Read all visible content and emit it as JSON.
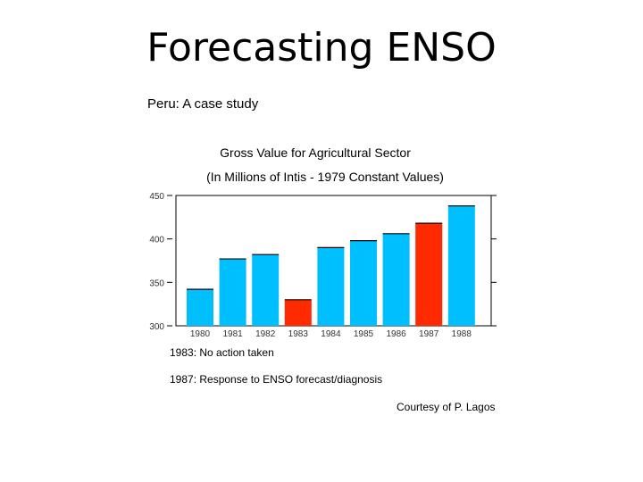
{
  "slide": {
    "title": "Forecasting ENSO",
    "subtitle": "Peru: A case study"
  },
  "colors": {
    "normal_bar": "#00bfff",
    "highlight_bar": "#ff2a00",
    "axis": "#000000"
  },
  "chart_data": {
    "type": "bar",
    "title": "Gross Value for Agricultural Sector",
    "subtitle": "(In Millions of Intis - 1979 Constant Values)",
    "categories": [
      "1980",
      "1981",
      "1982",
      "1983",
      "1984",
      "1985",
      "1986",
      "1987",
      "1988"
    ],
    "values": [
      342,
      377,
      382,
      330,
      390,
      398,
      406,
      418,
      438
    ],
    "highlighted": [
      "1983",
      "1987"
    ],
    "ylim": [
      300,
      450
    ],
    "yticks": [
      "300",
      "350",
      "400",
      "450"
    ],
    "xlabel": "",
    "ylabel": "",
    "grid": false,
    "legend": "none"
  },
  "annotations": {
    "note_1983": "1983: No action taken",
    "note_1987": "1987: Response to ENSO forecast/diagnosis",
    "credit": "Courtesy of P. Lagos"
  }
}
